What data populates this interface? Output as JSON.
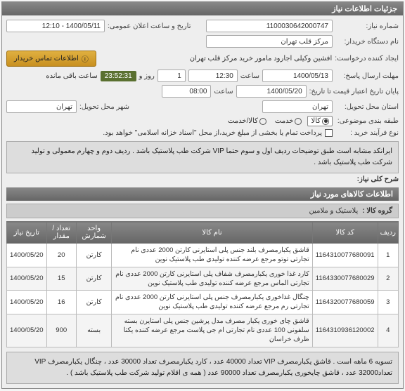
{
  "panel_title": "جزئیات اطلاعات نیاز",
  "fields": {
    "need_no_label": "شماره نیاز:",
    "need_no": "1100030642000747",
    "pub_date_label": "تاریخ و ساعت اعلان عمومی:",
    "pub_date": "1400/05/11 - 12:10",
    "buyer_org_label": "نام دستگاه خریدار:",
    "buyer_org": "مرکز قلب تهران",
    "requester_label": "ایجاد کننده درخواست:",
    "requester": "افشین وکیلی اجارود مامور خرید مرکز قلب تهران",
    "contact_btn": "اطلاعات تماس خریدار",
    "deadline_label": "مهلت ارسال پاسخ:",
    "deadline_to_label": "تا تاریخ:",
    "deadline_date": "1400/05/13",
    "deadline_hour_label": "ساعت",
    "deadline_hour": "12:30",
    "deadline_day_label": "روز و",
    "deadline_day": "1",
    "countdown": "23:52:31",
    "remaining_label": "ساعت باقی مانده",
    "validity_label": "پایان تاریخ اعتبار قیمت تا تاریخ:",
    "validity_date": "1400/05/20",
    "validity_hour": "08:00",
    "province_label": "استان محل تحویل:",
    "province": "تهران",
    "city_label": "شهر محل تحویل:",
    "city": "تهران",
    "category_label": "طبقه بندی موضوعی:",
    "radio_goods": "کالا",
    "radio_service": "خدمت",
    "radio_goods_service": "کالا/خدمت",
    "process_label": "نوع فرآیند خرید :",
    "process_text": "پرداخت تمام یا بخشی از مبلغ خرید،از محل \"اسناد خزانه اسلامی\" خواهد بود.",
    "main_desc_label": "شرح کلی نیاز:",
    "main_desc": "ایرانکد مشابه است طبق توضیحات ردیف اول و سوم حتما VIP شرکت طب پلاستیک باشد . ردیف دوم و چهارم معمولی و تولید شرکت طب پلاستیک باشد .",
    "items_header": "اطلاعات کالاهای مورد نیاز",
    "group_label": "گروه کالا :",
    "group_value": "پلاستیک و ملامین"
  },
  "table": {
    "headers": [
      "ردیف",
      "کد کالا",
      "نام کالا",
      "واحد شمارش",
      "تعداد / مقدار",
      "تاریخ نیاز"
    ],
    "rows": [
      {
        "n": "1",
        "code": "1164310077680091",
        "name": "قاشق یکبارمصرف بلند جنس پلی استایرنی کارتن 2000 عددی نام تجارتی توتو مرجع عرضه کننده تولیدی طب پلاستیک نوین",
        "unit": "کارتن",
        "qty": "20",
        "date": "1400/05/20"
      },
      {
        "n": "2",
        "code": "1164330077680029",
        "name": "کارد غذا خوری یکبارمصرف شفاف پلی استایرنی کارتن 2000 عددی نام تجارتی الماس مرجع عرضه کننده تولیدی طب پلاستیک نوین",
        "unit": "کارتن",
        "qty": "15",
        "date": "1400/05/20"
      },
      {
        "n": "3",
        "code": "1164320077680059",
        "name": "چنگال غذاخوری یکبارمصرف جنس پلی استایرنی کارتن 2000 عددی نام تجارتی رم مرجع عرضه کننده تولیدی طب پلاستیک نوین",
        "unit": "کارتن",
        "qty": "16",
        "date": "1400/05/20"
      },
      {
        "n": "4",
        "code": "1164310936120002",
        "name": "قاشق چای خوری یکبار مصرف مدل پرشین جنس پلی استایرن بسته سلفونی 100 عددی نام تجارتی ام جی پلاست مرجع عرضه کننده یکتا ظرف خراسان",
        "unit": "بسته",
        "qty": "900",
        "date": "1400/05/20"
      }
    ],
    "footer_note": "تسویه 6 ماهه است . قاشق یکبارمصرف VIP تعداد 40000 عدد ، کارد یکبارمصرف تعداد 30000 عدد ، چنگال یکبارمصرف VIP تعداد32000 عدد ، قاشق چایخوری یکبارمصرف تعداد 90000 عدد  ( همه ی اقلام تولید شرکت طب پلاستیک باشد ) ."
  },
  "colors": {
    "header_bg": "#777",
    "countdown_bg": "#5a7030"
  }
}
